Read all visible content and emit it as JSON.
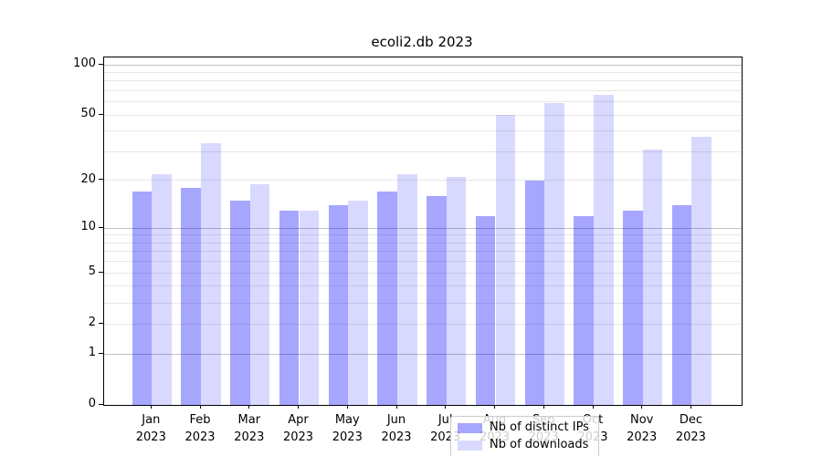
{
  "chart_data": {
    "type": "bar",
    "title": "ecoli2.db 2023",
    "categories": [
      "Jan",
      "Feb",
      "Mar",
      "Apr",
      "May",
      "Jun",
      "Jul",
      "Aug",
      "Sep",
      "Oct",
      "Nov",
      "Dec"
    ],
    "x_sublabel": "2023",
    "series": [
      {
        "name": "Nb of distinct IPs",
        "color": "rgba(0,0,255,0.35)",
        "values": [
          17,
          18,
          15,
          13,
          14,
          17,
          16,
          12,
          20,
          12,
          13,
          14
        ]
      },
      {
        "name": "Nb of downloads",
        "color": "rgba(0,0,255,0.15)",
        "values": [
          22,
          34,
          19,
          13,
          15,
          22,
          21,
          50,
          59,
          66,
          31,
          37
        ]
      }
    ],
    "xlabel": "",
    "ylabel": "",
    "yscale": "log1p",
    "ylim": [
      0,
      110.5
    ],
    "yticks": [
      0,
      1,
      2,
      5,
      10,
      20,
      50,
      100
    ],
    "grid_major": [
      1,
      10,
      100
    ],
    "grid_minor": [
      2,
      3,
      4,
      5,
      6,
      7,
      8,
      9,
      20,
      30,
      40,
      50,
      60,
      70,
      80,
      90
    ],
    "legend_position": "lower center",
    "colors": {
      "distinct_ips_bar": "#a6a6ff",
      "downloads_bar": "#d9d9ff",
      "minor_grid": "#e7e7e7",
      "major_grid": "#c2c2c2",
      "spine": "#000000"
    }
  }
}
